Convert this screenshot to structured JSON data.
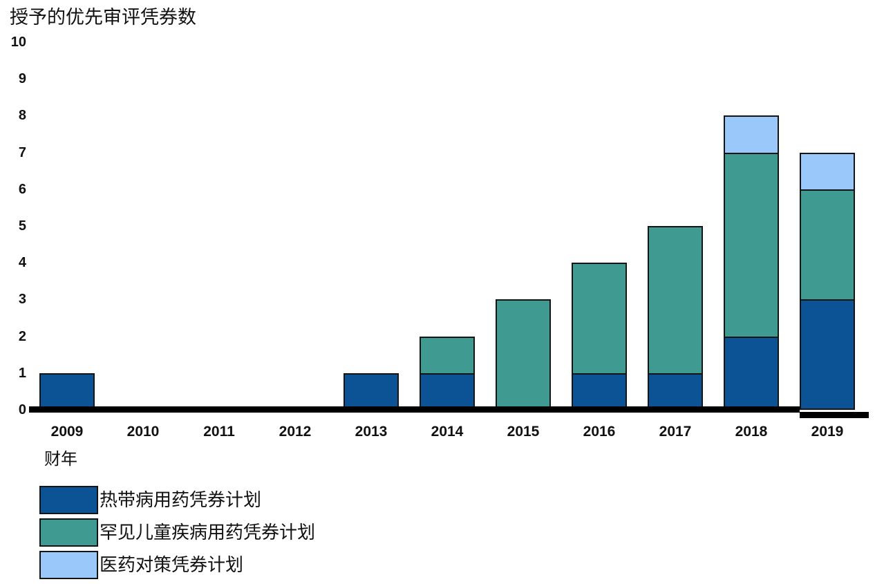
{
  "chart_data": {
    "type": "bar",
    "stacked": true,
    "title": "授予的优先审评凭券数",
    "ylabel": "授予的优先审评凭券数",
    "xlabel": "财年",
    "categories": [
      "2009",
      "2010",
      "2011",
      "2012",
      "2013",
      "2014",
      "2015",
      "2016",
      "2017",
      "2018",
      "2019"
    ],
    "series": [
      {
        "name": "热带病用药凭券计划",
        "color": "#0B5394",
        "values": [
          1,
          0,
          0,
          0,
          1,
          1,
          0,
          1,
          1,
          2,
          3
        ]
      },
      {
        "name": "罕见儿童疾病用药凭券计划",
        "color": "#3F9A91",
        "values": [
          0,
          0,
          0,
          0,
          0,
          1,
          3,
          3,
          4,
          5,
          3
        ]
      },
      {
        "name": "医药对策凭券计划",
        "color": "#9AC8FB",
        "values": [
          0,
          0,
          0,
          0,
          0,
          0,
          0,
          0,
          0,
          1,
          1
        ]
      }
    ],
    "totals": [
      1,
      0,
      0,
      0,
      1,
      2,
      3,
      4,
      5,
      8,
      7
    ],
    "ylim": [
      0,
      10
    ],
    "yticks": [
      0,
      1,
      2,
      3,
      4,
      5,
      6,
      7,
      8,
      9,
      10
    ],
    "grid": false,
    "legend_position": "bottom-left",
    "bar_border_color": "#141414",
    "axis_color": "#000000",
    "background_color": "#ffffff"
  }
}
